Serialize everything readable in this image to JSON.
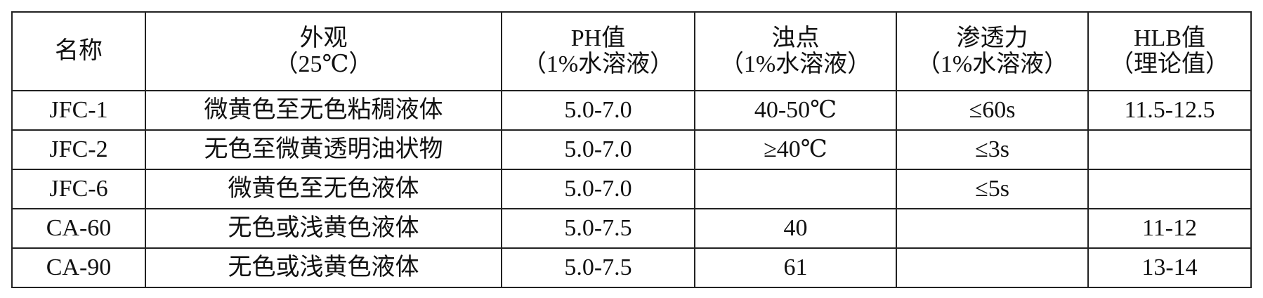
{
  "table": {
    "header": [
      [
        "名称"
      ],
      [
        "外观",
        "（25℃）"
      ],
      [
        "PH值",
        "（1%水溶液）"
      ],
      [
        "浊点",
        "（1%水溶液）"
      ],
      [
        "渗透力",
        "（1%水溶液）"
      ],
      [
        "HLB值",
        "（理论值）"
      ]
    ],
    "rows": [
      [
        "JFC-1",
        "微黄色至无色粘稠液体",
        "5.0-7.0",
        "40-50℃",
        "≤60s",
        "11.5-12.5"
      ],
      [
        "JFC-2",
        "无色至微黄透明油状物",
        "5.0-7.0",
        "≥40℃",
        "≤3s",
        null
      ],
      [
        "JFC-6",
        "微黄色至无色液体",
        "5.0-7.0",
        null,
        "≤5s",
        null
      ],
      [
        "CA-60",
        "无色或浅黄色液体",
        "5.0-7.5",
        "40",
        null,
        "11-12"
      ],
      [
        "CA-90",
        "无色或浅黄色液体",
        "5.0-7.5",
        "61",
        null,
        "13-14"
      ]
    ]
  }
}
